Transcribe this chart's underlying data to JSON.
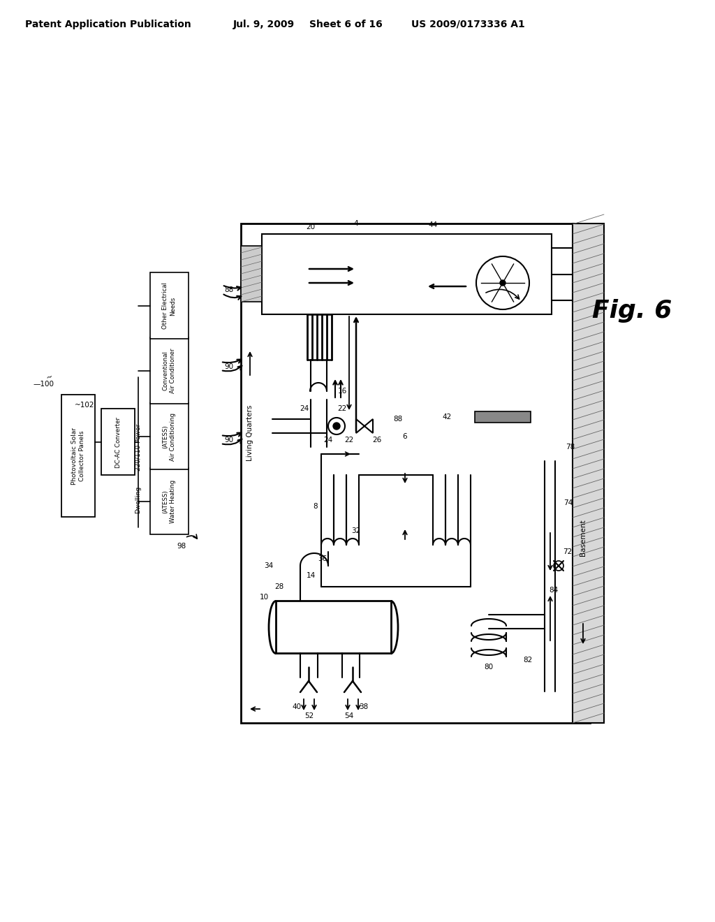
{
  "bg": "#ffffff",
  "header1": "Patent Application Publication",
  "header2": "Jul. 9, 2009",
  "header3": "Sheet 6 of 16",
  "header4": "US 2009/0173336 A1",
  "fig_label": "Fig. 6"
}
